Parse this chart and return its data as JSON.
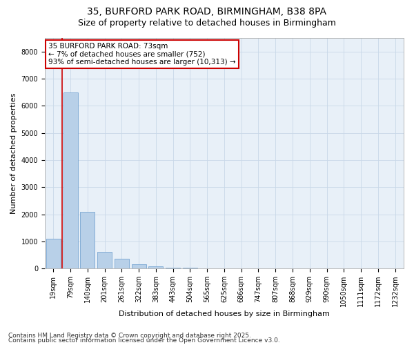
{
  "title_line1": "35, BURFORD PARK ROAD, BIRMINGHAM, B38 8PA",
  "title_line2": "Size of property relative to detached houses in Birmingham",
  "xlabel": "Distribution of detached houses by size in Birmingham",
  "ylabel": "Number of detached properties",
  "categories": [
    "19sqm",
    "79sqm",
    "140sqm",
    "201sqm",
    "261sqm",
    "322sqm",
    "383sqm",
    "443sqm",
    "504sqm",
    "565sqm",
    "625sqm",
    "686sqm",
    "747sqm",
    "807sqm",
    "868sqm",
    "929sqm",
    "990sqm",
    "1050sqm",
    "1111sqm",
    "1172sqm",
    "1232sqm"
  ],
  "values": [
    1100,
    6500,
    2100,
    620,
    350,
    150,
    75,
    40,
    40,
    0,
    0,
    0,
    0,
    0,
    0,
    0,
    0,
    0,
    0,
    0,
    0
  ],
  "bar_color": "#b8d0e8",
  "bar_edge_color": "#6699cc",
  "property_line_x": 0.5,
  "annotation_text": "35 BURFORD PARK ROAD: 73sqm\n← 7% of detached houses are smaller (752)\n93% of semi-detached houses are larger (10,313) →",
  "annotation_box_color": "#ffffff",
  "annotation_box_edge": "#cc0000",
  "property_line_color": "#cc0000",
  "grid_color": "#c8d8e8",
  "background_color": "#e8f0f8",
  "ylim": [
    0,
    8500
  ],
  "yticks": [
    0,
    1000,
    2000,
    3000,
    4000,
    5000,
    6000,
    7000,
    8000
  ],
  "footer_line1": "Contains HM Land Registry data © Crown copyright and database right 2025.",
  "footer_line2": "Contains public sector information licensed under the Open Government Licence v3.0.",
  "title_fontsize": 10,
  "subtitle_fontsize": 9,
  "axis_label_fontsize": 8,
  "tick_fontsize": 7,
  "annotation_fontsize": 7.5,
  "footer_fontsize": 6.5
}
